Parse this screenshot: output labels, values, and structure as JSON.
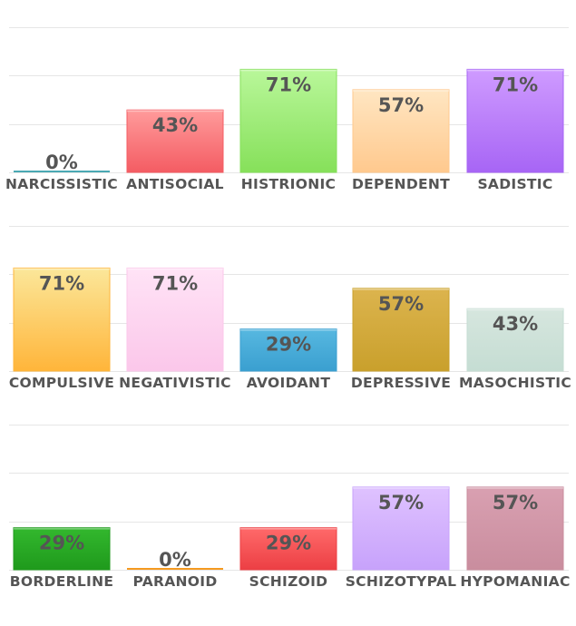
{
  "chart_data": [
    {
      "type": "bar",
      "ylim": [
        0,
        100
      ],
      "grid": true,
      "categories": [
        "NARCISSISTIC",
        "ANTISOCIAL",
        "HISTRIONIC",
        "DEPENDENT",
        "SADISTIC"
      ],
      "values": [
        0,
        43,
        71,
        57,
        71
      ],
      "value_labels": [
        "0%",
        "43%",
        "71%",
        "57%",
        "71%"
      ],
      "bar_colors": [
        [
          "#6fc6cc",
          "#4aa9b3"
        ],
        [
          "#ff9b9b",
          "#f45c63"
        ],
        [
          "#b9f79a",
          "#86e05a"
        ],
        [
          "#ffe6c2",
          "#ffc98e"
        ],
        [
          "#cf9bff",
          "#a765f5"
        ]
      ]
    },
    {
      "type": "bar",
      "ylim": [
        0,
        100
      ],
      "grid": true,
      "categories": [
        "COMPULSIVE",
        "NEGATIVISTIC",
        "AVOIDANT",
        "DEPRESSIVE",
        "MASOCHISTIC"
      ],
      "values": [
        71,
        71,
        29,
        57,
        43
      ],
      "value_labels": [
        "71%",
        "71%",
        "29%",
        "57%",
        "43%"
      ],
      "bar_colors": [
        [
          "#fbe79a",
          "#ffb53a"
        ],
        [
          "#ffe3f6",
          "#fbc7ea"
        ],
        [
          "#57b8e0",
          "#3a9fd0"
        ],
        [
          "#dcb44e",
          "#c9a02c"
        ],
        [
          "#d6e6de",
          "#c5ddd3"
        ]
      ]
    },
    {
      "type": "bar",
      "ylim": [
        0,
        100
      ],
      "grid": true,
      "categories": [
        "BORDERLINE",
        "PARANOID",
        "SCHIZOID",
        "SCHIZOTYPAL",
        "HYPOMANIAC"
      ],
      "values": [
        29,
        0,
        29,
        57,
        57
      ],
      "value_labels": [
        "29%",
        "0%",
        "29%",
        "57%",
        "57%"
      ],
      "bar_colors": [
        [
          "#33b82e",
          "#1f9a1c"
        ],
        [
          "#ffb347",
          "#f59a20"
        ],
        [
          "#ff6a6a",
          "#ec3f44"
        ],
        [
          "#dfc2ff",
          "#c7a2fb"
        ],
        [
          "#d9a0b1",
          "#c98d9e"
        ]
      ]
    }
  ]
}
